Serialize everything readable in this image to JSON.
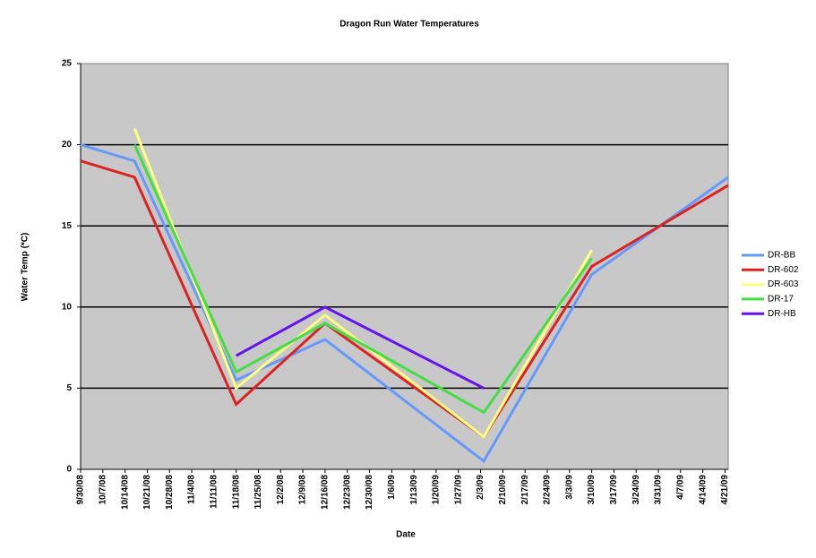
{
  "chart_data": {
    "type": "line",
    "title": "Dragon Run Water  Temperatures",
    "x_label": "Date",
    "y_label": "Water Temp (*C)",
    "x": [
      "9/30/08",
      "10/17/08",
      "11/18/08",
      "12/16/08",
      "2/4/09",
      "3/10/09",
      "4/22/09"
    ],
    "series": [
      {
        "name": "DR-BB",
        "color": "#6699ff",
        "values": [
          20,
          19,
          5.5,
          8,
          0.5,
          12,
          18
        ]
      },
      {
        "name": "DR-602",
        "color": "#dd2222",
        "values": [
          19,
          18,
          4,
          9,
          2,
          12.5,
          17.5
        ]
      },
      {
        "name": "DR-603",
        "color": "#ffff80",
        "values": [
          null,
          21,
          5,
          9.5,
          2,
          13.5,
          null
        ]
      },
      {
        "name": "DR-17",
        "color": "#44dd44",
        "values": [
          null,
          20,
          6,
          9,
          3.5,
          13,
          null
        ]
      },
      {
        "name": "DR-HB",
        "color": "#6611ee",
        "values": [
          null,
          null,
          7,
          10,
          5,
          null,
          null
        ]
      }
    ],
    "xlim": [
      "9/30/08",
      "4/22/09"
    ],
    "xticks": [
      "9/30/08",
      "10/7/08",
      "10/14/08",
      "10/21/08",
      "10/28/08",
      "11/4/08",
      "11/11/08",
      "11/18/08",
      "11/25/08",
      "12/2/08",
      "12/9/08",
      "12/16/08",
      "12/23/08",
      "12/30/08",
      "1/6/09",
      "1/13/09",
      "1/20/09",
      "1/27/09",
      "2/3/09",
      "2/10/09",
      "2/17/09",
      "2/24/09",
      "3/3/09",
      "3/10/09",
      "3/17/09",
      "3/24/09",
      "3/31/09",
      "4/7/09",
      "4/14/09",
      "4/21/09"
    ],
    "ylim": [
      0,
      25
    ],
    "yticks": [
      0,
      5,
      10,
      15,
      20,
      25
    ],
    "grid": true,
    "legend": "right"
  }
}
